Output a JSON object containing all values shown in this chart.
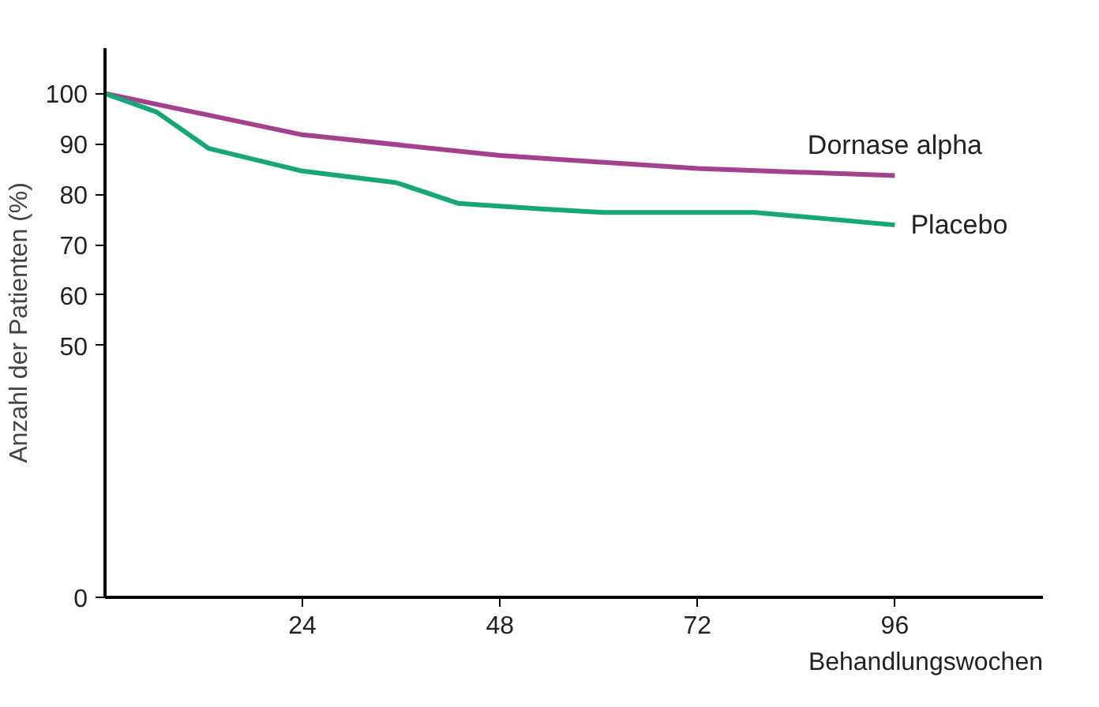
{
  "chart_data": {
    "type": "line",
    "ylabel": "Anzahl der Patienten (%)",
    "xlabel": "Behandlungswochen",
    "xlim": [
      0,
      114
    ],
    "xticks": [
      24,
      48,
      72,
      96
    ],
    "ylim": [
      0,
      109
    ],
    "yticks": [
      0,
      50,
      60,
      70,
      80,
      90,
      100
    ],
    "grid": false,
    "legend": false,
    "series": [
      {
        "name": "Dornase alpha",
        "color": "#a3418f",
        "x": [
          0,
          24,
          48,
          72,
          96
        ],
        "values": [
          100,
          91.8,
          87.7,
          85.1,
          83.7
        ]
      },
      {
        "name": "Placebo",
        "color": "#17a67a",
        "x": [
          0,
          6.3,
          12.6,
          24,
          35.4,
          42.9,
          53,
          60.6,
          79,
          96
        ],
        "values": [
          100,
          96.3,
          89.1,
          84.6,
          82.3,
          78.2,
          77.1,
          76.4,
          76.4,
          73.9
        ]
      }
    ]
  }
}
